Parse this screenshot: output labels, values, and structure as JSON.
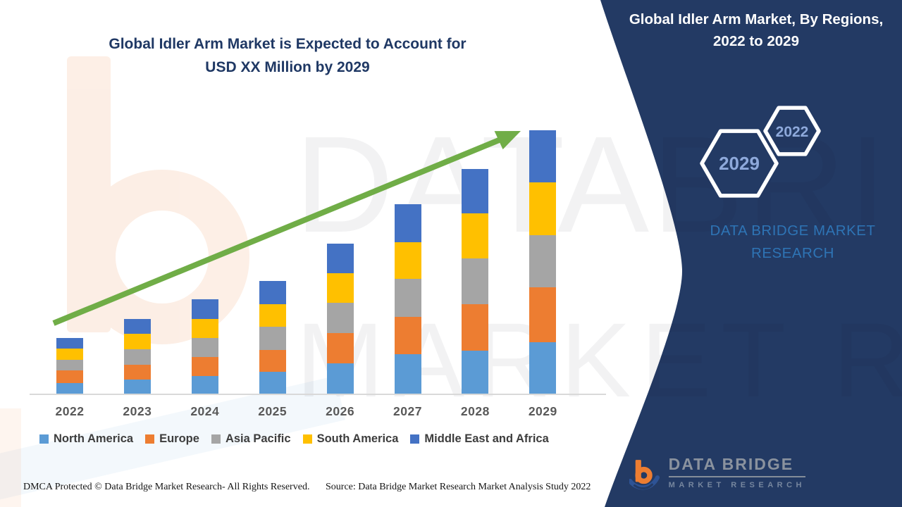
{
  "chart": {
    "title_line1": "Global Idler Arm Market is Expected to Account for",
    "title_line2": "USD XX Million by 2029"
  },
  "chart_data": {
    "type": "bar",
    "stacked": true,
    "title": "Global Idler Arm Market is Expected to Account for USD XX Million by 2029",
    "xlabel": "",
    "ylabel": "",
    "units": "relative estimated units (no numeric value axis shown; values labeled USD XX Million)",
    "value_axis_visible": false,
    "gridlines": false,
    "legend_position": "bottom",
    "ylim": [
      0,
      400
    ],
    "categories": [
      "2022",
      "2023",
      "2024",
      "2025",
      "2026",
      "2027",
      "2028",
      "2029"
    ],
    "series": [
      {
        "name": "North America",
        "color": "#5B9BD5",
        "values": [
          16,
          21,
          26,
          32,
          44,
          57,
          62,
          74
        ]
      },
      {
        "name": "Europe",
        "color": "#ED7D31",
        "values": [
          18,
          21,
          27,
          31,
          43,
          53,
          66,
          78
        ]
      },
      {
        "name": "Asia Pacific",
        "color": "#A5A5A5",
        "values": [
          15,
          22,
          27,
          33,
          43,
          54,
          65,
          74
        ]
      },
      {
        "name": "South America",
        "color": "#FFC000",
        "values": [
          16,
          22,
          27,
          32,
          42,
          52,
          64,
          75
        ]
      },
      {
        "name": "Middle East and Africa",
        "color": "#4472C4",
        "values": [
          15,
          21,
          28,
          33,
          42,
          54,
          63,
          74
        ]
      }
    ],
    "totals": [
      80,
      107,
      135,
      161,
      214,
      270,
      320,
      375
    ],
    "trend_arrow": true,
    "trend_arrow_color": "#70AD47"
  },
  "panel": {
    "title_line1": "Global Idler Arm Market, By Regions,",
    "title_line2": "2022 to 2029",
    "hexagon_back_label": "2022",
    "hexagon_front_label": "2029",
    "brand_line1": "DATA BRIDGE MARKET",
    "brand_line2": "RESEARCH",
    "background_color": "#233A64",
    "brand_text_color": "#2E74B5",
    "hexagon_label_color": "#8EA9DB"
  },
  "logo": {
    "name": "DATA BRIDGE",
    "subtitle": "MARKET RESEARCH",
    "icon_orange": "#ED7D31",
    "icon_blue": "#2E5395"
  },
  "watermark": {
    "line1": "DATABRIDGE",
    "line2": "MARKET RESEARCH"
  },
  "footer": {
    "left": "DMCA Protected © Data Bridge Market Research- All Rights Reserved.",
    "source": "Source: Data Bridge Market Research Market Analysis Study 2022"
  }
}
